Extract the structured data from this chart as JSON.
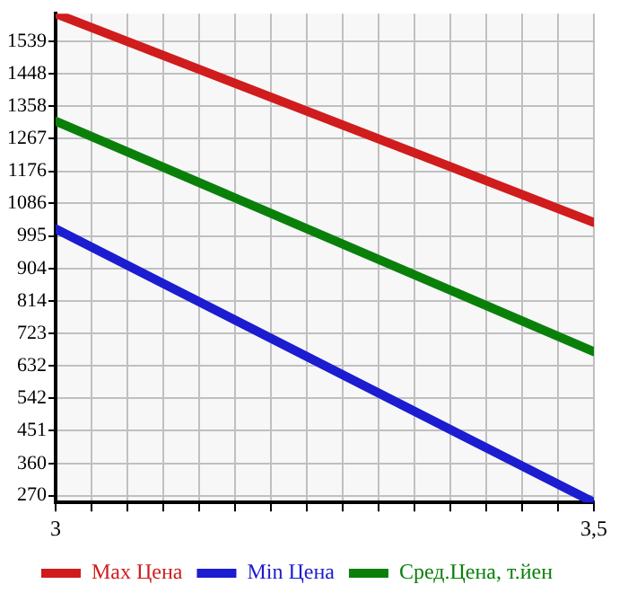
{
  "chart_data": {
    "type": "line",
    "x": [
      3,
      3.5
    ],
    "series": [
      {
        "name": "Max Цена",
        "color": "#d01c1c",
        "values": [
          1616,
          1033
        ]
      },
      {
        "name": "Min Цена",
        "color": "#1c1cd0",
        "values": [
          1015,
          251
        ]
      },
      {
        "name": "Сред.Цена, т.йен",
        "color": "#0a800a",
        "values": [
          1316,
          672
        ]
      }
    ],
    "xlim": [
      3,
      3.5
    ],
    "xticks": [
      3,
      {
        "value": 3.0333,
        "label": null
      },
      {
        "value": 3.0667,
        "label": null
      },
      {
        "value": 3.1,
        "label": null
      },
      {
        "value": 3.1333,
        "label": null
      },
      {
        "value": 3.1667,
        "label": null
      },
      {
        "value": 3.2,
        "label": null
      },
      {
        "value": 3.2333,
        "label": null
      },
      {
        "value": 3.2667,
        "label": null
      },
      {
        "value": 3.3,
        "label": null
      },
      {
        "value": 3.3333,
        "label": null
      },
      {
        "value": 3.3667,
        "label": null
      },
      {
        "value": 3.4,
        "label": null
      },
      {
        "value": 3.4333,
        "label": null
      },
      {
        "value": 3.4667,
        "label": null
      },
      {
        "value": 3.5,
        "label": "3,5"
      }
    ],
    "ylim": [
      251,
      1616
    ],
    "yticks": [
      270,
      360,
      451,
      542,
      632,
      723,
      814,
      904,
      995,
      1086,
      1176,
      1267,
      1358,
      1448,
      1539
    ],
    "grid": true,
    "legend": "bottom",
    "marker": "none",
    "line_style": "solid"
  }
}
